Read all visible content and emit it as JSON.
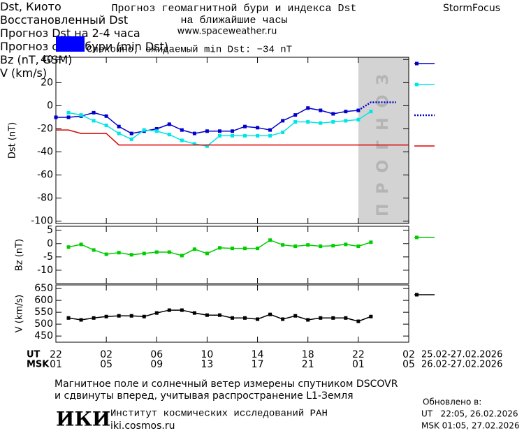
{
  "header": {
    "title": "Прогноз геомагнитной бури и индекса Dst",
    "subtitle": "на ближайшие часы",
    "site": "www.spaceweather.ru",
    "brand": "StormFocus"
  },
  "status": {
    "text": "Спокойно, ожидаемый min Dst: −34 nT",
    "color": "#0000ff"
  },
  "chart_data": [
    {
      "type": "line",
      "ylabel": "Dst (nT)",
      "xlim": [
        0,
        28
      ],
      "ylim": [
        -102,
        42
      ],
      "yticks": [
        -100,
        -80,
        -60,
        -40,
        -20,
        0,
        20,
        40
      ],
      "legend": "right",
      "forecast_region": {
        "label": "ПРОГНОЗ",
        "x": [
          24,
          28
        ],
        "color": "#d3d3d3"
      },
      "series": [
        {
          "name": "Dst, Киото",
          "color": "#0000cc",
          "marker": "square",
          "style": "solid",
          "x": [
            0,
            1,
            2,
            3,
            4,
            5,
            6,
            7,
            8,
            9,
            10,
            11,
            12,
            13,
            14,
            15,
            16,
            17,
            18,
            19,
            20,
            21,
            22,
            23,
            24
          ],
          "values": [
            -10,
            -10,
            -9,
            -6,
            -9,
            -18,
            -24,
            -22,
            -20,
            -16,
            -21,
            -24,
            -22,
            -22,
            -22,
            -18,
            -19,
            -21,
            -13,
            -8,
            -2,
            -4,
            -7,
            -5,
            -4
          ]
        },
        {
          "name": "Восстановленный\nDst",
          "color": "#00e5e5",
          "marker": "square",
          "style": "solid",
          "x": [
            1,
            2,
            3,
            4,
            5,
            6,
            7,
            8,
            9,
            10,
            11,
            12,
            13,
            14,
            15,
            16,
            17,
            18,
            19,
            20,
            21,
            22,
            23,
            24,
            25
          ],
          "values": [
            -6,
            -8,
            -13,
            -17,
            -24,
            -29,
            -21,
            -22,
            -25,
            -30,
            -33,
            -35,
            -26,
            -26,
            -26,
            -26,
            -26,
            -23,
            -14,
            -14,
            -15,
            -14,
            -13,
            -12,
            -5
          ]
        },
        {
          "name": "Прогноз Dst\nна 2-4 часа",
          "color": "#0000cc",
          "marker": "none",
          "style": "dotted",
          "x": [
            24,
            25,
            27
          ],
          "values": [
            -4,
            3,
            3
          ]
        },
        {
          "name": "Прогноз\nсилы бури\n(min Dst)",
          "color": "#dd0000",
          "marker": "none",
          "style": "solid",
          "x": [
            0,
            1,
            2,
            4,
            5,
            28
          ],
          "values": [
            -21,
            -21,
            -24,
            -24,
            -34,
            -34
          ]
        }
      ]
    },
    {
      "type": "line",
      "ylabel": "Bz (nT)",
      "xlim": [
        0,
        28
      ],
      "ylim": [
        -15,
        6.5
      ],
      "yticks": [
        -10,
        -5,
        0,
        5
      ],
      "legend": "right",
      "series": [
        {
          "name": "Bz (nT, GSM)",
          "color": "#00cc00",
          "marker": "square",
          "style": "solid",
          "x": [
            1,
            2,
            3,
            4,
            5,
            6,
            7,
            8,
            9,
            10,
            11,
            12,
            13,
            14,
            15,
            16,
            17,
            18,
            19,
            20,
            21,
            22,
            23,
            24,
            25
          ],
          "values": [
            -1.3,
            -0.3,
            -2.4,
            -4,
            -3.4,
            -4.2,
            -3.7,
            -3.2,
            -3.2,
            -4.5,
            -2.1,
            -3.7,
            -1.6,
            -1.8,
            -1.8,
            -1.8,
            1.3,
            -0.5,
            -1,
            -0.5,
            -1,
            -0.8,
            -0.3,
            -1,
            0.5
          ]
        }
      ]
    },
    {
      "type": "line",
      "ylabel": "V (km/s)",
      "xlim": [
        0,
        28
      ],
      "ylim": [
        424,
        665
      ],
      "yticks": [
        450,
        500,
        550,
        600,
        650
      ],
      "legend": "right",
      "series": [
        {
          "name": "V (km/s)",
          "color": "#000000",
          "marker": "square",
          "style": "solid",
          "x": [
            1,
            2,
            3,
            4,
            5,
            6,
            7,
            8,
            9,
            10,
            11,
            12,
            13,
            14,
            15,
            16,
            17,
            18,
            19,
            20,
            21,
            22,
            23,
            24,
            25
          ],
          "values": [
            526,
            518,
            526,
            532,
            535,
            535,
            532,
            547,
            559,
            559,
            547,
            538,
            538,
            526,
            526,
            521,
            541,
            521,
            535,
            518,
            526,
            526,
            526,
            512,
            532
          ]
        }
      ],
      "x_rows": [
        "UT",
        "MSK"
      ],
      "x_ranges": [
        "25.02-27.02.2026",
        "26.02-27.02.2026"
      ],
      "xticks": [
        {
          "value": 0,
          "label": "22"
        },
        {
          "value": 4,
          "label": "02"
        },
        {
          "value": 8,
          "label": "06"
        },
        {
          "value": 12,
          "label": "10"
        },
        {
          "value": 16,
          "label": "14"
        },
        {
          "value": 20,
          "label": "18"
        },
        {
          "value": 24,
          "label": "22"
        },
        {
          "value": 28,
          "label": "02"
        }
      ],
      "xticks_msk": [
        {
          "value": 0,
          "label": "01"
        },
        {
          "value": 4,
          "label": "05"
        },
        {
          "value": 8,
          "label": "09"
        },
        {
          "value": 12,
          "label": "13"
        },
        {
          "value": 16,
          "label": "17"
        },
        {
          "value": 20,
          "label": "21"
        },
        {
          "value": 24,
          "label": "01"
        },
        {
          "value": 28,
          "label": "05"
        }
      ]
    }
  ],
  "footer": {
    "note": [
      "Магнитное поле и солнечный ветер измерены спутником DSCOVR",
      "и сдвинуты вперед, учитывая распространение L1-Земля"
    ],
    "updated": {
      "label": "Обновлено в:",
      "ut": "UT   22:05, 26.02.2026",
      "msk": "MSK 01:05, 27.02.2026"
    },
    "institute": {
      "logo": "ИКИ",
      "name": "Институт космических исследований РАН",
      "site": "iki.cosmos.ru"
    }
  }
}
